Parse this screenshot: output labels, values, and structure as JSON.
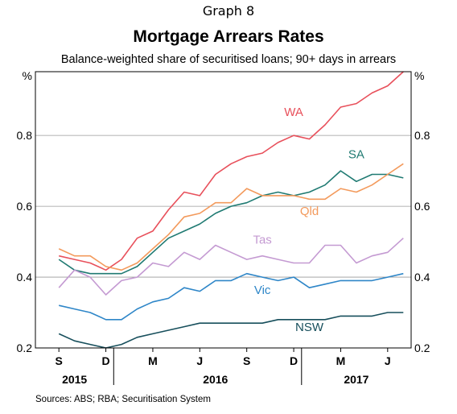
{
  "header": {
    "graph_label": "Graph 8",
    "title": "Mortgage Arrears Rates",
    "subtitle": "Balance-weighted share of securitised loans; 90+ days in arrears"
  },
  "footer": {
    "sources": "Sources:  ABS; RBA; Securitisation System"
  },
  "chart_data": {
    "type": "line",
    "title": "Mortgage Arrears Rates",
    "subtitle": "Balance-weighted share of securitised loans; 90+ days in arrears",
    "y_unit_left": "%",
    "y_unit_right": "%",
    "ylim": [
      0.2,
      0.98
    ],
    "y_ticks": [
      0.2,
      0.4,
      0.6,
      0.8
    ],
    "y_tick_labels": [
      "0.2",
      "0.4",
      "0.6",
      "0.8"
    ],
    "x_start": "2015-08",
    "x_end": "2017-07",
    "x_ticks": [
      {
        "label": "S",
        "month": "2015-09"
      },
      {
        "label": "D",
        "month": "2015-12"
      },
      {
        "label": "M",
        "month": "2016-03"
      },
      {
        "label": "J",
        "month": "2016-06"
      },
      {
        "label": "S",
        "month": "2016-09"
      },
      {
        "label": "D",
        "month": "2016-12"
      },
      {
        "label": "M",
        "month": "2017-03"
      },
      {
        "label": "J",
        "month": "2017-06"
      }
    ],
    "year_labels": [
      {
        "label": "2015",
        "month": "2015-10"
      },
      {
        "label": "2016",
        "month": "2016-07"
      },
      {
        "label": "2017",
        "month": "2017-04"
      }
    ],
    "months": [
      "2015-09",
      "2015-10",
      "2015-11",
      "2015-12",
      "2016-01",
      "2016-02",
      "2016-03",
      "2016-04",
      "2016-05",
      "2016-06",
      "2016-07",
      "2016-08",
      "2016-09",
      "2016-10",
      "2016-11",
      "2016-12",
      "2017-01",
      "2017-02",
      "2017-03",
      "2017-04",
      "2017-05",
      "2017-06",
      "2017-07"
    ],
    "grid": true,
    "legend": "inline labels",
    "series": [
      {
        "name": "WA",
        "color": "#e8505b",
        "label_month": "2016-12",
        "label_value": 0.855,
        "values": [
          0.46,
          0.45,
          0.44,
          0.42,
          0.45,
          0.51,
          0.53,
          0.59,
          0.64,
          0.63,
          0.69,
          0.72,
          0.74,
          0.75,
          0.78,
          0.8,
          0.79,
          0.83,
          0.88,
          0.89,
          0.92,
          0.94,
          0.98
        ]
      },
      {
        "name": "SA",
        "color": "#1f7a72",
        "label_month": "2017-04",
        "label_value": 0.735,
        "values": [
          0.45,
          0.42,
          0.41,
          0.41,
          0.41,
          0.43,
          0.47,
          0.51,
          0.53,
          0.55,
          0.58,
          0.6,
          0.61,
          0.63,
          0.64,
          0.63,
          0.64,
          0.66,
          0.7,
          0.67,
          0.69,
          0.69,
          0.68
        ]
      },
      {
        "name": "Qld",
        "color": "#f39a5c",
        "label_month": "2017-01",
        "label_value": 0.575,
        "values": [
          0.48,
          0.46,
          0.46,
          0.43,
          0.42,
          0.44,
          0.48,
          0.52,
          0.57,
          0.58,
          0.61,
          0.61,
          0.65,
          0.63,
          0.63,
          0.63,
          0.62,
          0.62,
          0.65,
          0.64,
          0.66,
          0.69,
          0.72
        ]
      },
      {
        "name": "Tas",
        "color": "#c49ad2",
        "label_month": "2016-10",
        "label_value": 0.495,
        "values": [
          0.37,
          0.42,
          0.4,
          0.35,
          0.39,
          0.4,
          0.44,
          0.43,
          0.47,
          0.45,
          0.49,
          0.47,
          0.45,
          0.46,
          0.45,
          0.44,
          0.44,
          0.49,
          0.49,
          0.44,
          0.46,
          0.47,
          0.51
        ]
      },
      {
        "name": "Vic",
        "color": "#2e86c8",
        "label_month": "2016-10",
        "label_value": 0.352,
        "values": [
          0.32,
          0.31,
          0.3,
          0.28,
          0.28,
          0.31,
          0.33,
          0.34,
          0.37,
          0.36,
          0.39,
          0.39,
          0.41,
          0.4,
          0.39,
          0.4,
          0.37,
          0.38,
          0.39,
          0.39,
          0.39,
          0.4,
          0.41
        ]
      },
      {
        "name": "NSW",
        "color": "#174f5c",
        "label_month": "2017-01",
        "label_value": 0.248,
        "values": [
          0.24,
          0.22,
          0.21,
          0.2,
          0.21,
          0.23,
          0.24,
          0.25,
          0.26,
          0.27,
          0.27,
          0.27,
          0.27,
          0.27,
          0.28,
          0.28,
          0.28,
          0.28,
          0.29,
          0.29,
          0.29,
          0.3,
          0.3
        ]
      }
    ]
  }
}
